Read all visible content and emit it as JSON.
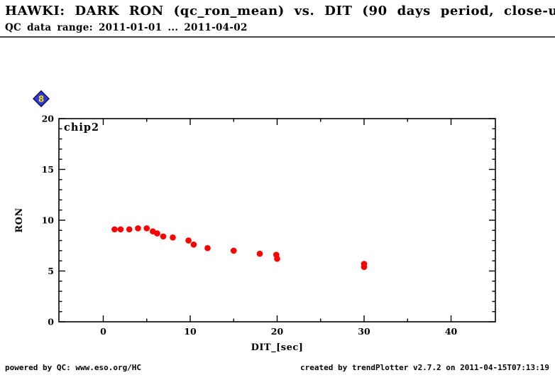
{
  "header": {
    "title": "HAWKI: DARK RON (qc_ron_mean) vs. DIT (90 days period, close-u",
    "subtitle": "QC data range: 2011-01-01 ... 2011-04-02"
  },
  "nav_icon": {
    "name": "blue-diamond-bookmark",
    "label": "8",
    "diamond_color": "#2b3cd9",
    "border_color": "#101060",
    "label_color": "#ffd700"
  },
  "footer": {
    "left": "powered by QC: www.eso.org/HC",
    "right": "created by trendPlotter v2.7.2 on 2011-04-15T07:13:19"
  },
  "chart_data": {
    "type": "scatter",
    "chip_label": "chip2",
    "xlabel": "DIT_[sec]",
    "ylabel": "RON",
    "xlim": [
      -5.1,
      45.1
    ],
    "ylim": [
      0,
      20
    ],
    "x_major_ticks": [
      0,
      10,
      20,
      30,
      40
    ],
    "x_minor_ticks": [
      5,
      15,
      25,
      35
    ],
    "y_major_ticks": [
      0,
      5,
      10,
      15,
      20
    ],
    "y_minor_step": 1,
    "grid": false,
    "legend": "none",
    "marker_color": "#ff0000",
    "points": [
      [
        1.3,
        9.1
      ],
      [
        2.0,
        9.1
      ],
      [
        3.0,
        9.1
      ],
      [
        4.0,
        9.2
      ],
      [
        5.0,
        9.2
      ],
      [
        5.7,
        8.9
      ],
      [
        6.2,
        8.7
      ],
      [
        6.9,
        8.4
      ],
      [
        8.0,
        8.3
      ],
      [
        9.8,
        8.0
      ],
      [
        10.4,
        7.6
      ],
      [
        12.0,
        7.25
      ],
      [
        15.0,
        7.0
      ],
      [
        18.0,
        6.7
      ],
      [
        19.9,
        6.6
      ],
      [
        20.0,
        6.2
      ],
      [
        30.0,
        5.7
      ],
      [
        30.0,
        5.4
      ]
    ]
  }
}
